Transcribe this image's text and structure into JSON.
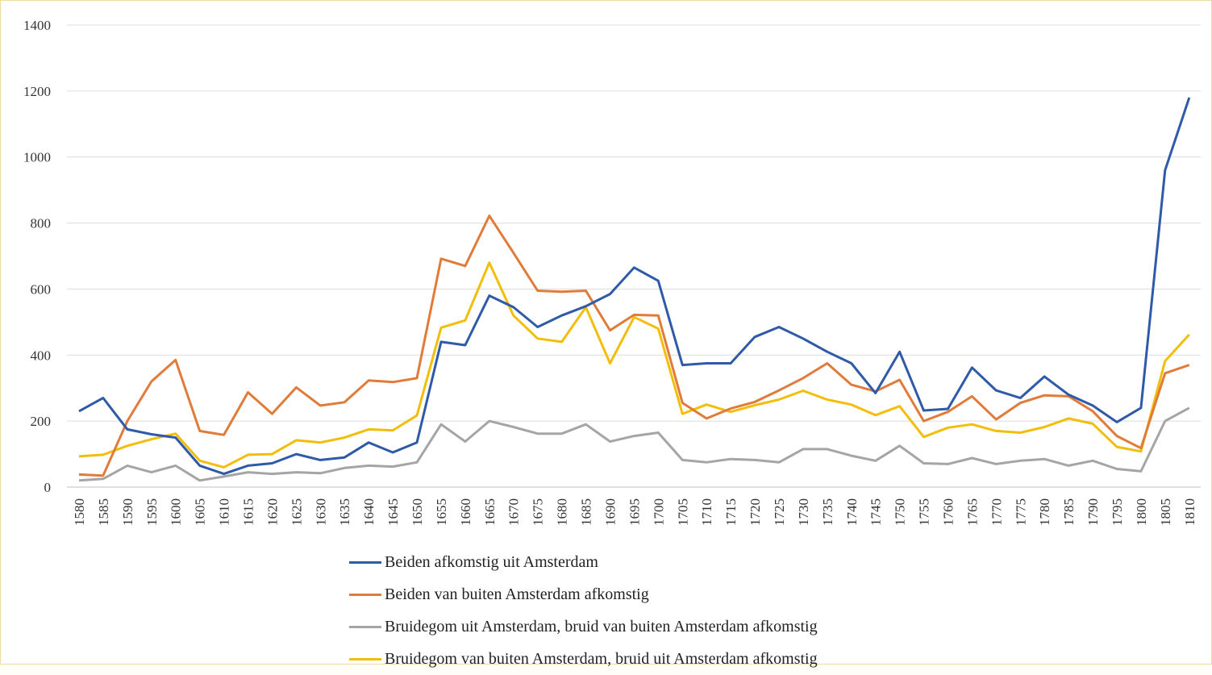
{
  "chart_data": {
    "type": "line",
    "title": "",
    "xlabel": "",
    "ylabel": "",
    "ylim": [
      0,
      1400
    ],
    "yticks": [
      0,
      200,
      400,
      600,
      800,
      1000,
      1200,
      1400
    ],
    "grid": "horizontal",
    "legend_position": "bottom",
    "x": [
      "1580",
      "1585",
      "1590",
      "1595",
      "1600",
      "1605",
      "1610",
      "1615",
      "1620",
      "1625",
      "1630",
      "1635",
      "1640",
      "1645",
      "1650",
      "1655",
      "1660",
      "1665",
      "1670",
      "1675",
      "1680",
      "1685",
      "1690",
      "1695",
      "1700",
      "1705",
      "1710",
      "1715",
      "1720",
      "1725",
      "1730",
      "1735",
      "1740",
      "1745",
      "1750",
      "1755",
      "1760",
      "1765",
      "1770",
      "1775",
      "1780",
      "1785",
      "1790",
      "1795",
      "1800",
      "1805",
      "1810"
    ],
    "series": [
      {
        "name": "Beiden afkomstig uit Amsterdam",
        "color": "#2e5aa8",
        "values": [
          230,
          270,
          175,
          160,
          150,
          65,
          40,
          65,
          72,
          100,
          82,
          90,
          135,
          105,
          135,
          440,
          430,
          580,
          545,
          485,
          520,
          548,
          585,
          665,
          625,
          370,
          375,
          375,
          455,
          485,
          450,
          410,
          375,
          285,
          410,
          232,
          237,
          362,
          293,
          270,
          335,
          280,
          247,
          197,
          240,
          960,
          1180
        ]
      },
      {
        "name": "Beiden van buiten Amsterdam afkomstig",
        "color": "#e07b39",
        "values": [
          38,
          35,
          200,
          320,
          385,
          170,
          158,
          287,
          222,
          302,
          247,
          257,
          323,
          318,
          330,
          692,
          670,
          822,
          710,
          595,
          592,
          595,
          475,
          522,
          520,
          255,
          208,
          238,
          258,
          293,
          330,
          375,
          310,
          290,
          325,
          200,
          228,
          275,
          205,
          255,
          278,
          275,
          230,
          155,
          118,
          345,
          370
        ]
      },
      {
        "name": "Bruidegom uit Amsterdam, bruid van buiten Amsterdam afkomstig",
        "color": "#a5a5a5",
        "values": [
          20,
          25,
          65,
          45,
          65,
          20,
          32,
          45,
          40,
          45,
          42,
          58,
          65,
          62,
          75,
          190,
          138,
          200,
          182,
          162,
          162,
          190,
          138,
          155,
          165,
          82,
          75,
          85,
          82,
          75,
          115,
          115,
          95,
          80,
          125,
          72,
          70,
          88,
          70,
          80,
          85,
          65,
          80,
          55,
          48,
          200,
          240
        ]
      },
      {
        "name": "Bruidegom van buiten Amsterdam, bruid uit Amsterdam afkomstig",
        "color": "#f2be0b",
        "values": [
          93,
          98,
          125,
          145,
          162,
          80,
          60,
          98,
          100,
          142,
          135,
          150,
          175,
          172,
          217,
          483,
          505,
          680,
          520,
          450,
          440,
          545,
          375,
          515,
          480,
          222,
          250,
          228,
          248,
          265,
          292,
          265,
          250,
          218,
          245,
          152,
          180,
          190,
          170,
          165,
          182,
          208,
          192,
          122,
          108,
          382,
          462
        ]
      }
    ]
  }
}
